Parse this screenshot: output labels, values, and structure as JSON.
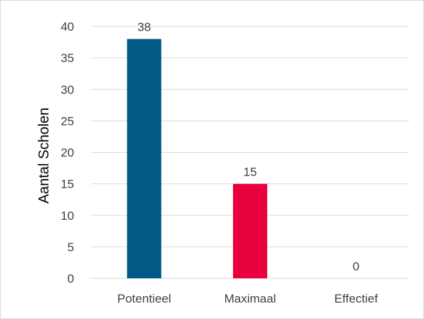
{
  "chart_data": {
    "type": "bar",
    "categories": [
      "Potentieel",
      "Maximaal",
      "Effectief"
    ],
    "values": [
      38,
      15,
      0
    ],
    "data_labels": [
      "38",
      "15",
      "0"
    ],
    "bar_colors": [
      "#005a85",
      "#e8003f",
      "#005a85"
    ],
    "title": "",
    "xlabel": "",
    "ylabel": "Aantal Scholen",
    "ylim": [
      0,
      40
    ],
    "yticks": [
      "0",
      "5",
      "10",
      "15",
      "20",
      "25",
      "30",
      "35",
      "40"
    ],
    "grid": true,
    "legend": "none"
  }
}
